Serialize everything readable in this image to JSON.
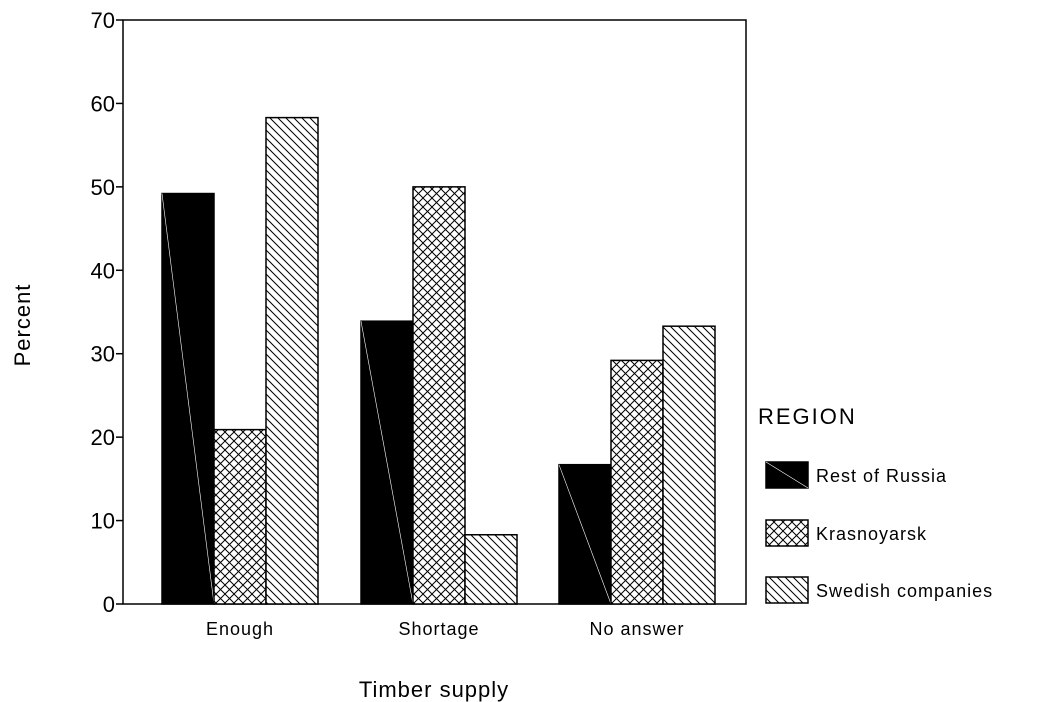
{
  "chart_data": {
    "type": "bar",
    "xlabel": "Timber supply",
    "ylabel": "Percent",
    "ylim": [
      0,
      70
    ],
    "yticks": [
      0,
      10,
      20,
      30,
      40,
      50,
      60,
      70
    ],
    "categories": [
      "Enough",
      "Shortage",
      "No answer"
    ],
    "series": [
      {
        "name": "Rest of Russia",
        "values": [
          49.2,
          33.9,
          16.7
        ],
        "color": "#000000",
        "pattern": "solid"
      },
      {
        "name": "Krasnoyarsk",
        "values": [
          20.9,
          50.0,
          29.2
        ],
        "color": "#000000",
        "pattern": "crosshatch"
      },
      {
        "name": "Swedish companies",
        "values": [
          58.3,
          8.3,
          33.3
        ],
        "color": "#000000",
        "pattern": "diagonal"
      }
    ],
    "legend": {
      "title": "REGION",
      "position": "right"
    },
    "grid": false
  }
}
